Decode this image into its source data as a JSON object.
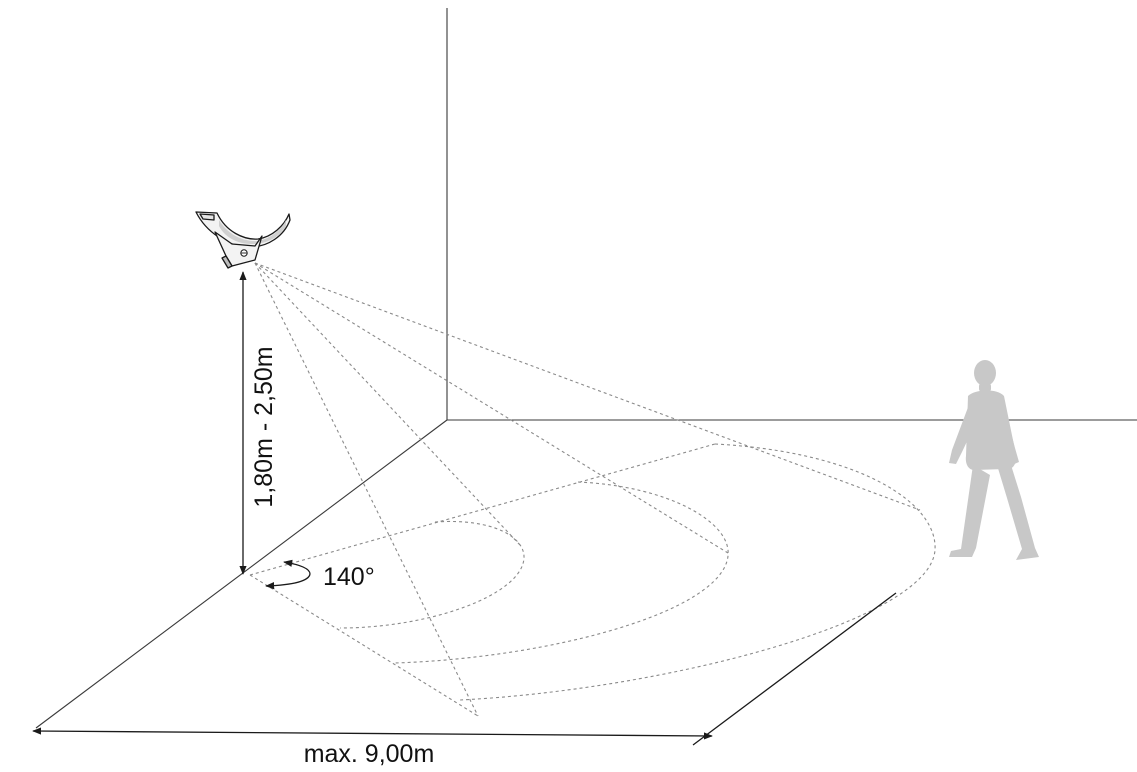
{
  "labels": {
    "height_range": "1,80m - 2,50m",
    "detection_angle": "140°",
    "max_range": "max. 9,00m"
  },
  "colors": {
    "room_lines": "#3a3a3a",
    "detection_zone": "#8a8a8a",
    "person_silhouette": "#c8c8c8",
    "dimension_lines": "#1a1a1a"
  },
  "icons": {
    "lamp": "wall-lamp-with-motion-sensor-icon",
    "person": "walking-person-icon"
  }
}
